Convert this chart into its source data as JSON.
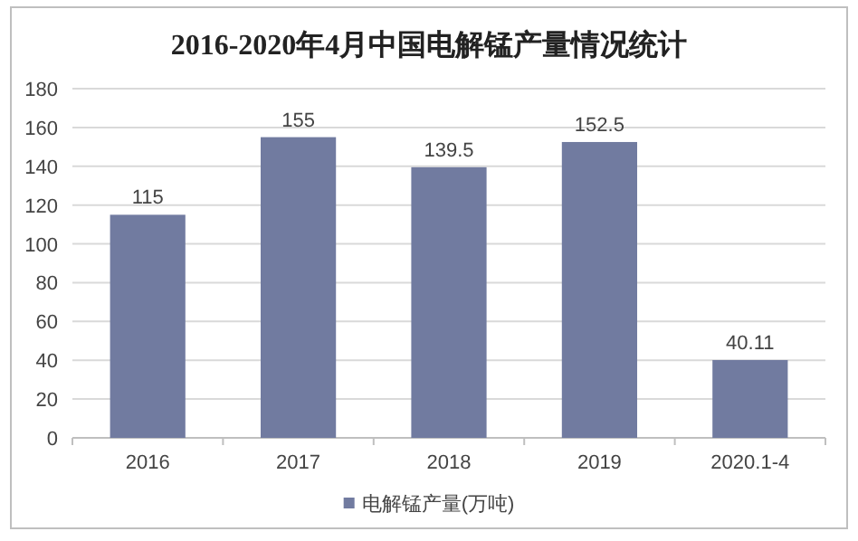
{
  "chart_data": {
    "type": "bar",
    "title": "2016-2020年4月中国电解锰产量情况统计",
    "categories": [
      "2016",
      "2017",
      "2018",
      "2019",
      "2020.1-4"
    ],
    "series": [
      {
        "name": "电解锰产量(万吨)",
        "color": "#717ba0",
        "values": [
          115,
          155,
          139.5,
          152.5,
          40.11
        ]
      }
    ],
    "ylim": [
      0,
      180
    ],
    "yticks": [
      0,
      20,
      40,
      60,
      80,
      100,
      120,
      140,
      160,
      180
    ],
    "grid": "y",
    "legend": "bottom",
    "data_labels": true
  }
}
